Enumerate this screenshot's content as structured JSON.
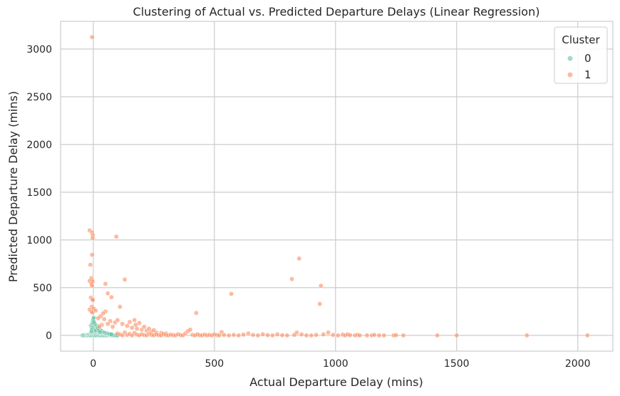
{
  "chart_data": {
    "type": "scatter",
    "title": "Clustering of Actual vs. Predicted Departure Delays (Linear Regression)",
    "xlabel": "Actual Departure Delay (mins)",
    "ylabel": "Predicted Departure Delay (mins)",
    "xlim": [
      -135,
      2145
    ],
    "ylim": [
      -165,
      3290
    ],
    "xticks": [
      0,
      500,
      1000,
      1500,
      2000
    ],
    "yticks": [
      0,
      500,
      1000,
      1500,
      2000,
      2500,
      3000
    ],
    "grid": true,
    "legend": {
      "title": "Cluster",
      "placement": "top-right"
    },
    "series": [
      {
        "name": "0",
        "color": "#66c2a5",
        "points": [
          [
            -45,
            0
          ],
          [
            -40,
            2
          ],
          [
            -35,
            0
          ],
          [
            -30,
            5
          ],
          [
            -28,
            1
          ],
          [
            -25,
            0
          ],
          [
            -22,
            3
          ],
          [
            -20,
            0
          ],
          [
            -18,
            8
          ],
          [
            -15,
            2
          ],
          [
            -12,
            0
          ],
          [
            -10,
            12
          ],
          [
            -8,
            4
          ],
          [
            -6,
            0
          ],
          [
            -4,
            20
          ],
          [
            -2,
            6
          ],
          [
            0,
            0
          ],
          [
            2,
            15
          ],
          [
            4,
            3
          ],
          [
            6,
            0
          ],
          [
            8,
            25
          ],
          [
            10,
            5
          ],
          [
            12,
            0
          ],
          [
            14,
            30
          ],
          [
            16,
            8
          ],
          [
            18,
            2
          ],
          [
            20,
            40
          ],
          [
            22,
            10
          ],
          [
            24,
            0
          ],
          [
            26,
            18
          ],
          [
            28,
            5
          ],
          [
            30,
            0
          ],
          [
            32,
            22
          ],
          [
            34,
            8
          ],
          [
            36,
            0
          ],
          [
            38,
            12
          ],
          [
            40,
            3
          ],
          [
            42,
            0
          ],
          [
            44,
            28
          ],
          [
            46,
            6
          ],
          [
            48,
            0
          ],
          [
            50,
            15
          ],
          [
            52,
            4
          ],
          [
            54,
            0
          ],
          [
            56,
            20
          ],
          [
            58,
            2
          ],
          [
            60,
            0
          ],
          [
            62,
            10
          ],
          [
            64,
            3
          ],
          [
            66,
            0
          ],
          [
            68,
            8
          ],
          [
            70,
            1
          ],
          [
            72,
            0
          ],
          [
            74,
            5
          ],
          [
            76,
            0
          ],
          [
            78,
            3
          ],
          [
            80,
            0
          ],
          [
            85,
            2
          ],
          [
            90,
            0
          ],
          [
            95,
            1
          ],
          [
            100,
            0
          ],
          [
            -10,
            100
          ],
          [
            -5,
            110
          ],
          [
            0,
            95
          ],
          [
            -3,
            130
          ],
          [
            -1,
            150
          ],
          [
            0,
            170
          ],
          [
            2,
            185
          ],
          [
            -4,
            80
          ],
          [
            5,
            70
          ],
          [
            8,
            60
          ],
          [
            10,
            50
          ],
          [
            15,
            90
          ],
          [
            20,
            80
          ],
          [
            25,
            65
          ],
          [
            30,
            55
          ],
          [
            35,
            45
          ],
          [
            40,
            35
          ],
          [
            12,
            105
          ],
          [
            18,
            75
          ],
          [
            6,
            120
          ],
          [
            3,
            140
          ],
          [
            -6,
            60
          ],
          [
            -8,
            40
          ],
          [
            22,
            50
          ],
          [
            28,
            35
          ],
          [
            45,
            30
          ],
          [
            50,
            25
          ],
          [
            55,
            20
          ],
          [
            60,
            18
          ],
          [
            65,
            15
          ],
          [
            70,
            12
          ],
          [
            75,
            10
          ]
        ]
      },
      {
        "name": "1",
        "color": "#fc8d62",
        "points": [
          [
            -5,
            3125
          ],
          [
            -15,
            1100
          ],
          [
            -5,
            1080
          ],
          [
            -2,
            1050
          ],
          [
            -3,
            1020
          ],
          [
            95,
            1035
          ],
          [
            -5,
            845
          ],
          [
            -12,
            740
          ],
          [
            -8,
            600
          ],
          [
            -5,
            580
          ],
          [
            -15,
            570
          ],
          [
            -3,
            560
          ],
          [
            -8,
            540
          ],
          [
            -5,
            520
          ],
          [
            -10,
            395
          ],
          [
            -3,
            380
          ],
          [
            -2,
            370
          ],
          [
            -6,
            300
          ],
          [
            -15,
            270
          ],
          [
            -8,
            250
          ],
          [
            -3,
            240
          ],
          [
            2,
            280
          ],
          [
            10,
            260
          ],
          [
            50,
            540
          ],
          [
            60,
            440
          ],
          [
            75,
            400
          ],
          [
            130,
            585
          ],
          [
            110,
            300
          ],
          [
            50,
            250
          ],
          [
            40,
            230
          ],
          [
            30,
            200
          ],
          [
            20,
            180
          ],
          [
            45,
            170
          ],
          [
            70,
            150
          ],
          [
            90,
            135
          ],
          [
            60,
            120
          ],
          [
            35,
            110
          ],
          [
            25,
            95
          ],
          [
            80,
            90
          ],
          [
            100,
            160
          ],
          [
            120,
            120
          ],
          [
            140,
            100
          ],
          [
            160,
            80
          ],
          [
            180,
            70
          ],
          [
            200,
            60
          ],
          [
            220,
            50
          ],
          [
            240,
            40
          ],
          [
            260,
            30
          ],
          [
            280,
            25
          ],
          [
            300,
            20
          ],
          [
            170,
            160
          ],
          [
            190,
            130
          ],
          [
            210,
            90
          ],
          [
            230,
            70
          ],
          [
            250,
            55
          ],
          [
            150,
            140
          ],
          [
            175,
            110
          ],
          [
            100,
            20
          ],
          [
            110,
            10
          ],
          [
            120,
            0
          ],
          [
            130,
            30
          ],
          [
            140,
            5
          ],
          [
            150,
            15
          ],
          [
            160,
            0
          ],
          [
            170,
            25
          ],
          [
            180,
            8
          ],
          [
            190,
            0
          ],
          [
            200,
            12
          ],
          [
            210,
            3
          ],
          [
            220,
            0
          ],
          [
            230,
            18
          ],
          [
            240,
            5
          ],
          [
            250,
            0
          ],
          [
            260,
            10
          ],
          [
            270,
            2
          ],
          [
            280,
            0
          ],
          [
            290,
            15
          ],
          [
            300,
            4
          ],
          [
            310,
            0
          ],
          [
            320,
            8
          ],
          [
            330,
            2
          ],
          [
            340,
            0
          ],
          [
            350,
            12
          ],
          [
            360,
            3
          ],
          [
            370,
            0
          ],
          [
            380,
            20
          ],
          [
            390,
            45
          ],
          [
            400,
            60
          ],
          [
            410,
            5
          ],
          [
            420,
            0
          ],
          [
            430,
            10
          ],
          [
            440,
            2
          ],
          [
            450,
            0
          ],
          [
            460,
            8
          ],
          [
            470,
            0
          ],
          [
            480,
            5
          ],
          [
            490,
            0
          ],
          [
            500,
            10
          ],
          [
            510,
            3
          ],
          [
            520,
            0
          ],
          [
            530,
            35
          ],
          [
            540,
            5
          ],
          [
            425,
            235
          ],
          [
            570,
            435
          ],
          [
            820,
            590
          ],
          [
            850,
            805
          ],
          [
            940,
            520
          ],
          [
            935,
            330
          ],
          [
            840,
            30
          ],
          [
            860,
            10
          ],
          [
            880,
            0
          ],
          [
            560,
            0
          ],
          [
            580,
            5
          ],
          [
            600,
            0
          ],
          [
            620,
            8
          ],
          [
            640,
            20
          ],
          [
            660,
            5
          ],
          [
            680,
            0
          ],
          [
            700,
            12
          ],
          [
            720,
            3
          ],
          [
            740,
            0
          ],
          [
            760,
            10
          ],
          [
            780,
            2
          ],
          [
            800,
            0
          ],
          [
            830,
            5
          ],
          [
            900,
            0
          ],
          [
            920,
            5
          ],
          [
            950,
            10
          ],
          [
            970,
            30
          ],
          [
            990,
            5
          ],
          [
            1010,
            0
          ],
          [
            1030,
            8
          ],
          [
            1040,
            0
          ],
          [
            1050,
            10
          ],
          [
            1060,
            2
          ],
          [
            1080,
            0
          ],
          [
            1090,
            5
          ],
          [
            1100,
            0
          ],
          [
            1130,
            0
          ],
          [
            1150,
            0
          ],
          [
            1160,
            5
          ],
          [
            1180,
            0
          ],
          [
            1200,
            0
          ],
          [
            1240,
            0
          ],
          [
            1250,
            2
          ],
          [
            1280,
            0
          ],
          [
            1420,
            0
          ],
          [
            1500,
            0
          ],
          [
            1790,
            0
          ],
          [
            2040,
            0
          ]
        ]
      }
    ]
  }
}
